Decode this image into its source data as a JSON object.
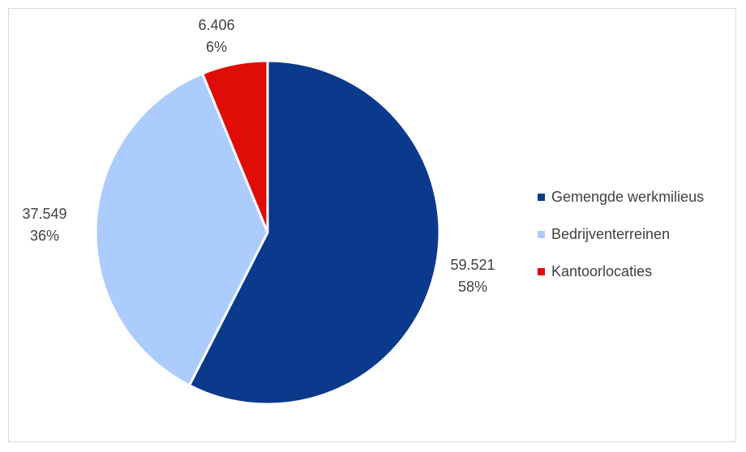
{
  "chart_data": {
    "type": "pie",
    "title": "",
    "categories": [
      "Gemengde werkmilieus",
      "Bedrijventerreinen",
      "Kantoorlocaties"
    ],
    "values": [
      59521,
      37549,
      6406
    ],
    "value_labels": [
      "59.521",
      "37.549",
      "6.406"
    ],
    "percent_labels": [
      "58%",
      "36%",
      "6%"
    ],
    "colors": [
      "#0b3a8c",
      "#acccfd",
      "#e00d07"
    ],
    "start_angle_deg": 0,
    "direction": "clockwise",
    "legend_position": "right"
  }
}
